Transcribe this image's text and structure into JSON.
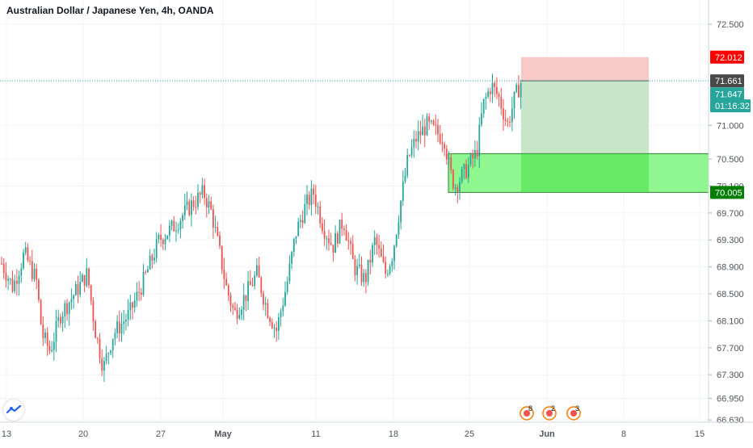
{
  "header": {
    "title": "Australian Dollar / Japanese Yen, 4h, OANDA"
  },
  "colors": {
    "up": "#26a69a",
    "down": "#ef5350",
    "target_zone": "#c8e6c9",
    "stop_zone": "#f8c9c9",
    "demand_zone": "#7cf57c",
    "demand_border": "#2e7d32",
    "axis_text": "#50535e",
    "grid": "#e0e3eb"
  },
  "events": {
    "badges": [
      "8",
      "2",
      "3"
    ]
  },
  "chart_data": {
    "type": "candlestick",
    "symbol": "AUDJPY",
    "timeframe": "4h",
    "y_axis": {
      "ticks": [
        "72.500",
        "71.000",
        "70.500",
        "70.100",
        "69.700",
        "69.300",
        "68.900",
        "68.500",
        "68.100",
        "67.700",
        "67.300",
        "66.950",
        "66.630"
      ],
      "tick_values": [
        72.5,
        71.0,
        70.5,
        70.1,
        69.7,
        69.3,
        68.9,
        68.5,
        68.1,
        67.7,
        67.3,
        66.95,
        66.63
      ],
      "ylim": [
        66.56,
        72.86
      ]
    },
    "x_axis": {
      "ticks": [
        "13",
        "20",
        "27",
        "May",
        "11",
        "18",
        "25",
        "Jun",
        "8",
        "15"
      ]
    },
    "price_labels": [
      {
        "name": "stop",
        "text": "72.012",
        "value": 72.012,
        "color": "#ff0000"
      },
      {
        "name": "high-line",
        "text": "71.661",
        "value": 71.661,
        "color": "#4a4a4a"
      },
      {
        "name": "last-price",
        "text": "71.647",
        "value": 71.647,
        "color": "#26a69a"
      },
      {
        "name": "countdown",
        "text": "01:16:32",
        "value": 71.4,
        "color": "#26a69a"
      },
      {
        "name": "demand-bottom",
        "text": "70.005",
        "value": 70.005,
        "color": "#007e00"
      }
    ],
    "zones": {
      "demand": {
        "top": 70.58,
        "bottom": 70.005,
        "from": "May 22",
        "to": "Jun 17"
      },
      "position_stop": {
        "top": 72.012,
        "bottom": 71.661
      },
      "position_target": {
        "top": 71.661,
        "bottom": 70.58
      }
    },
    "ohlc_summary": {
      "first_close": 68.95,
      "low": 67.3,
      "high": 72.0,
      "last_close": 71.647
    }
  }
}
